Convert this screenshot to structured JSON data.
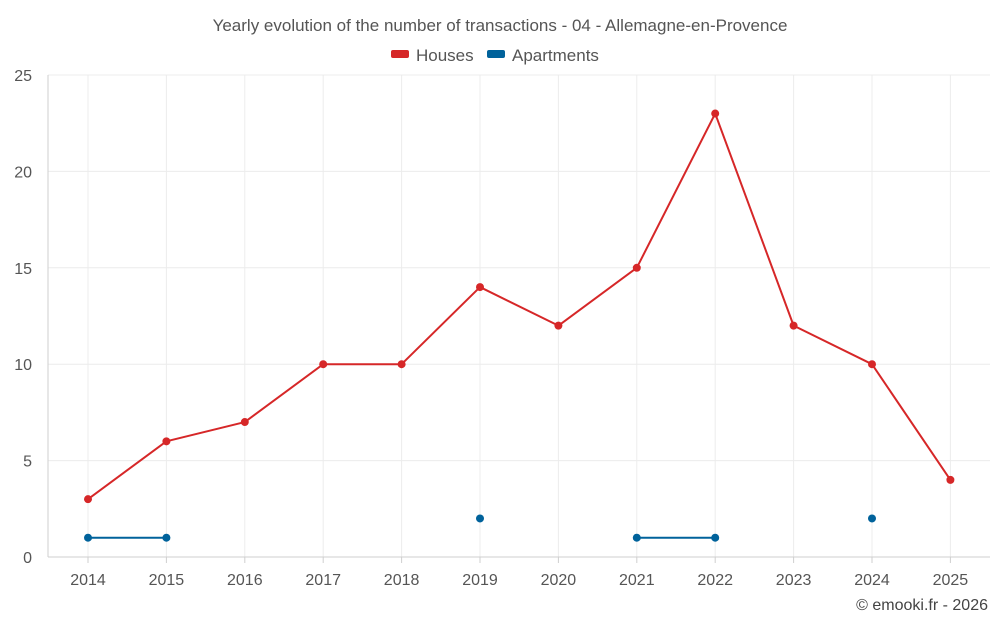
{
  "chart_data": {
    "type": "line",
    "title": "Yearly evolution of the number of transactions - 04 - Allemagne-en-Provence",
    "xlabel": "",
    "ylabel": "",
    "ylim": [
      0,
      25
    ],
    "yticks": [
      0,
      5,
      10,
      15,
      20,
      25
    ],
    "grid": true,
    "legend_position": "top-center",
    "x": [
      "2014",
      "2015",
      "2016",
      "2017",
      "2018",
      "2019",
      "2020",
      "2021",
      "2022",
      "2023",
      "2024",
      "2025"
    ],
    "series": [
      {
        "name": "Houses",
        "color": "#d62728",
        "values": [
          3,
          6,
          7,
          10,
          10,
          14,
          12,
          15,
          23,
          12,
          10,
          4
        ]
      },
      {
        "name": "Apartments",
        "color": "#00629b",
        "values": [
          1,
          1,
          null,
          null,
          null,
          2,
          null,
          1,
          1,
          null,
          2,
          null
        ]
      }
    ]
  },
  "footer": "© emooki.fr - 2026"
}
